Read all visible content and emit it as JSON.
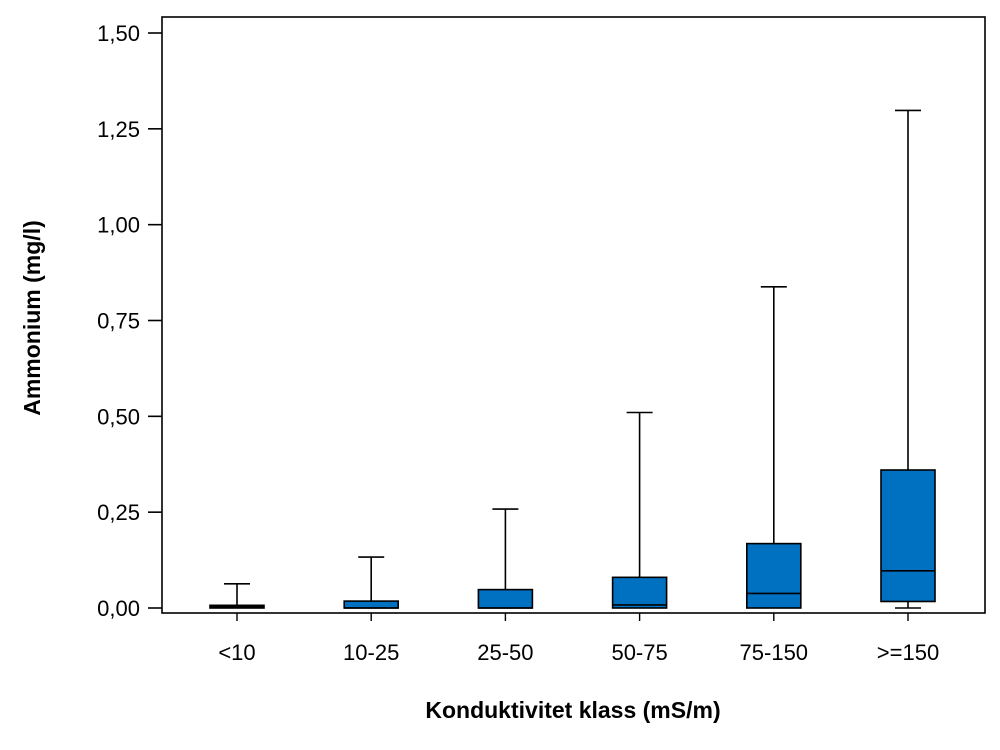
{
  "colors": {
    "box_fill": "#0070c0",
    "stroke": "#000000",
    "background": "#ffffff"
  },
  "chart_data": {
    "type": "boxplot",
    "title": "",
    "xlabel": "Konduktivitet klass (mS/m)",
    "ylabel": "Ammonium (mg/l)",
    "ylim": [
      0,
      1.5
    ],
    "yticks": [
      "0,00",
      "0,25",
      "0,50",
      "0,75",
      "1,00",
      "1,25",
      "1,50"
    ],
    "ytick_values": [
      0,
      0.25,
      0.5,
      0.75,
      1.0,
      1.25,
      1.5
    ],
    "grid": false,
    "legend": "none",
    "categories": [
      "<10",
      "10-25",
      "25-50",
      "50-75",
      "75-150",
      ">=150"
    ],
    "boxes": [
      {
        "category": "<10",
        "whisker_low": 0.0,
        "q1": 0.0,
        "median": 0.003,
        "q3": 0.007,
        "whisker_high": 0.063
      },
      {
        "category": "10-25",
        "whisker_low": 0.0,
        "q1": 0.0,
        "median": 0.0,
        "q3": 0.018,
        "whisker_high": 0.133
      },
      {
        "category": "25-50",
        "whisker_low": 0.0,
        "q1": 0.0,
        "median": 0.0,
        "q3": 0.048,
        "whisker_high": 0.258
      },
      {
        "category": "50-75",
        "whisker_low": 0.0,
        "q1": 0.0,
        "median": 0.008,
        "q3": 0.08,
        "whisker_high": 0.51
      },
      {
        "category": "75-150",
        "whisker_low": 0.0,
        "q1": 0.0,
        "median": 0.038,
        "q3": 0.168,
        "whisker_high": 0.838
      },
      {
        "category": ">=150",
        "whisker_low": 0.0,
        "q1": 0.017,
        "median": 0.097,
        "q3": 0.36,
        "whisker_high": 1.298
      }
    ]
  }
}
